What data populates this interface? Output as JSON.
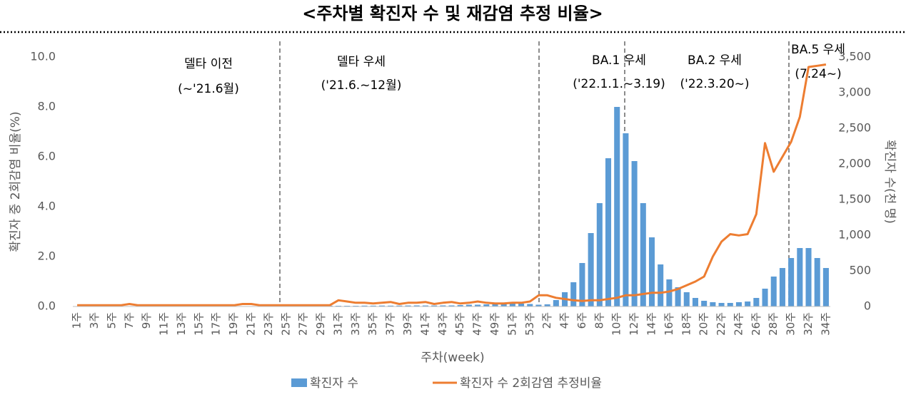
{
  "chart_data": {
    "type": "bar-line",
    "title": "<주차별 확진자 수 및 재감염 추정 비율>",
    "x_label": "주차(week)",
    "y_label": "확진자 중 2회감염 비율(%)",
    "y2_label": "확진자 수(천 명)",
    "annotations": [
      "델타 이전",
      "(~'21.6월)",
      "델타 우세",
      "('21.6.~12월)",
      "BA.1 우세",
      "('22.1.1.~3.19)",
      "BA.2 우세",
      "('22.3.20~)",
      "BA.5 우세",
      "(7.24~)"
    ],
    "categories": [
      "1주",
      null,
      "3주",
      null,
      "5주",
      null,
      "7주",
      null,
      "9주",
      null,
      "11주",
      null,
      "13주",
      null,
      "15주",
      null,
      "17주",
      null,
      "19주",
      null,
      "21주",
      null,
      "23주",
      null,
      "25주",
      null,
      "27주",
      null,
      "29주",
      null,
      "31주",
      null,
      "33주",
      null,
      "35주",
      null,
      "37주",
      null,
      "39주",
      null,
      "41주",
      null,
      "43주",
      null,
      "45주",
      null,
      "47주",
      null,
      "49주",
      null,
      "51주",
      null,
      "53주",
      null,
      "2주",
      null,
      "4주",
      null,
      "6주",
      null,
      "8주",
      null,
      "10주",
      null,
      "12주",
      null,
      "14주",
      null,
      "16주",
      null,
      "18주",
      null,
      "20주",
      null,
      "22주",
      null,
      "24주",
      null,
      "26주",
      null,
      "28주",
      null,
      "30주",
      null,
      "32주",
      null,
      "34주"
    ],
    "series": [
      {
        "name": "확진자 수",
        "color": "#5b9bd5",
        "kind": "bar",
        "axis": "y2",
        "values": [
          3,
          4,
          3,
          3,
          3,
          3,
          3,
          3,
          3,
          3,
          3,
          3,
          3,
          3,
          4,
          4,
          5,
          5,
          4,
          4,
          4,
          4,
          4,
          4,
          4,
          5,
          4,
          5,
          8,
          11,
          10,
          10,
          10,
          12,
          12,
          13,
          12,
          13,
          14,
          15,
          14,
          14,
          15,
          15,
          20,
          25,
          25,
          30,
          35,
          45,
          45,
          40,
          35,
          25,
          30,
          90,
          200,
          340,
          610,
          1030,
          1450,
          2080,
          2800,
          2430,
          2040,
          1450,
          970,
          590,
          380,
          270,
          200,
          120,
          80,
          60,
          50,
          50,
          60,
          70,
          120,
          250,
          420,
          540,
          680,
          820,
          820,
          680,
          540
        ]
      },
      {
        "name": "확진자 수 2회감염 추정비율",
        "color": "#ed7d31",
        "kind": "line",
        "values": [
          0.05,
          0.05,
          0.05,
          0.05,
          0.05,
          0.05,
          0.1,
          0.05,
          0.05,
          0.05,
          0.05,
          0.05,
          0.05,
          0.05,
          0.05,
          0.05,
          0.05,
          0.05,
          0.05,
          0.1,
          0.1,
          0.05,
          0.05,
          0.05,
          0.05,
          0.05,
          0.05,
          0.05,
          0.05,
          0.05,
          0.25,
          0.2,
          0.15,
          0.15,
          0.12,
          0.15,
          0.18,
          0.1,
          0.15,
          0.15,
          0.18,
          0.1,
          0.15,
          0.18,
          0.12,
          0.15,
          0.2,
          0.15,
          0.12,
          0.12,
          0.15,
          0.15,
          0.2,
          0.45,
          0.45,
          0.35,
          0.3,
          0.25,
          0.22,
          0.25,
          0.25,
          0.3,
          0.35,
          0.45,
          0.45,
          0.5,
          0.55,
          0.55,
          0.6,
          0.7,
          0.85,
          1.0,
          1.2,
          2.0,
          2.6,
          2.9,
          2.85,
          2.9,
          3.7,
          6.55,
          5.4,
          6.0,
          6.6,
          7.6,
          9.6,
          9.65,
          9.7
        ]
      }
    ],
    "ylim": [
      0,
      10
    ],
    "yticks": [
      {
        "value": 0,
        "label": "0.0"
      },
      {
        "value": 2,
        "label": "2.0"
      },
      {
        "value": 4,
        "label": "4.0"
      },
      {
        "value": 6,
        "label": "6.0"
      },
      {
        "value": 8,
        "label": "8.0"
      },
      {
        "value": 10,
        "label": "10.0"
      }
    ],
    "y2lim": [
      0,
      3500
    ],
    "y2ticks": [
      0,
      500,
      {
        "value": 1000,
        "label": "1,000"
      },
      {
        "value": 1500,
        "label": "1,500"
      },
      {
        "value": 2000,
        "label": "2,000"
      },
      {
        "value": 2500,
        "label": "2,500"
      },
      {
        "value": 3000,
        "label": "3,000"
      },
      {
        "value": 3500,
        "label": "3,500"
      }
    ]
  }
}
